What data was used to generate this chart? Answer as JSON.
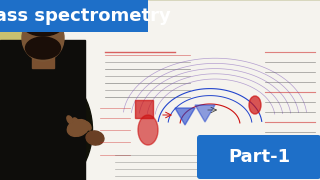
{
  "title_text": "Mass spectrometry",
  "part_text": "Part-1",
  "title_bg_color": "#1E6FC8",
  "part_bg_color": "#1E6FC8",
  "title_font_size": 13,
  "part_font_size": 13,
  "wall_color": "#c8c070",
  "whiteboard_color": "#f5f3ee",
  "person_dark": "#1a1410",
  "person_skin": "#7a5030",
  "diagram_red": "#cc1111",
  "diagram_blue": "#2244cc",
  "text_dark": "#444444",
  "text_red": "#cc2222"
}
